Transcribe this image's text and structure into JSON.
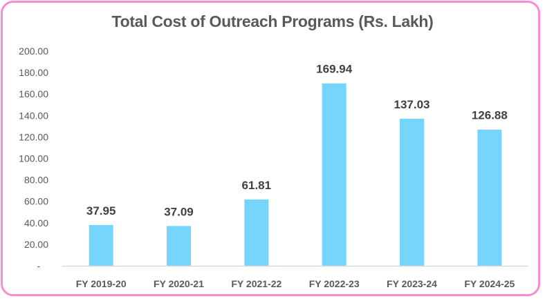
{
  "chart_data": {
    "type": "bar",
    "title": "Total Cost of Outreach Programs (Rs. Lakh)",
    "xlabel": "",
    "ylabel": "",
    "categories": [
      "FY 2019-20",
      "FY 2020-21",
      "FY 2021-22",
      "FY 2022-23",
      "FY 2023-24",
      "FY 2024-25"
    ],
    "values": [
      37.95,
      37.09,
      61.81,
      169.94,
      137.03,
      126.88
    ],
    "data_labels": [
      "37.95",
      "37.09",
      "61.81",
      "169.94",
      "137.03",
      "126.88"
    ],
    "ylim": [
      0,
      200
    ],
    "yticks": [
      0,
      20,
      40,
      60,
      80,
      100,
      120,
      140,
      160,
      180,
      200
    ],
    "ytick_labels": [
      "-",
      "20.00",
      "40.00",
      "60.00",
      "80.00",
      "100.00",
      "120.00",
      "140.00",
      "160.00",
      "180.00",
      "200.00"
    ],
    "grid": false,
    "legend": "none",
    "colors": {
      "bar": "#75d5fd",
      "frame": "#f98bd5",
      "axis": "#d9d9d9"
    }
  }
}
